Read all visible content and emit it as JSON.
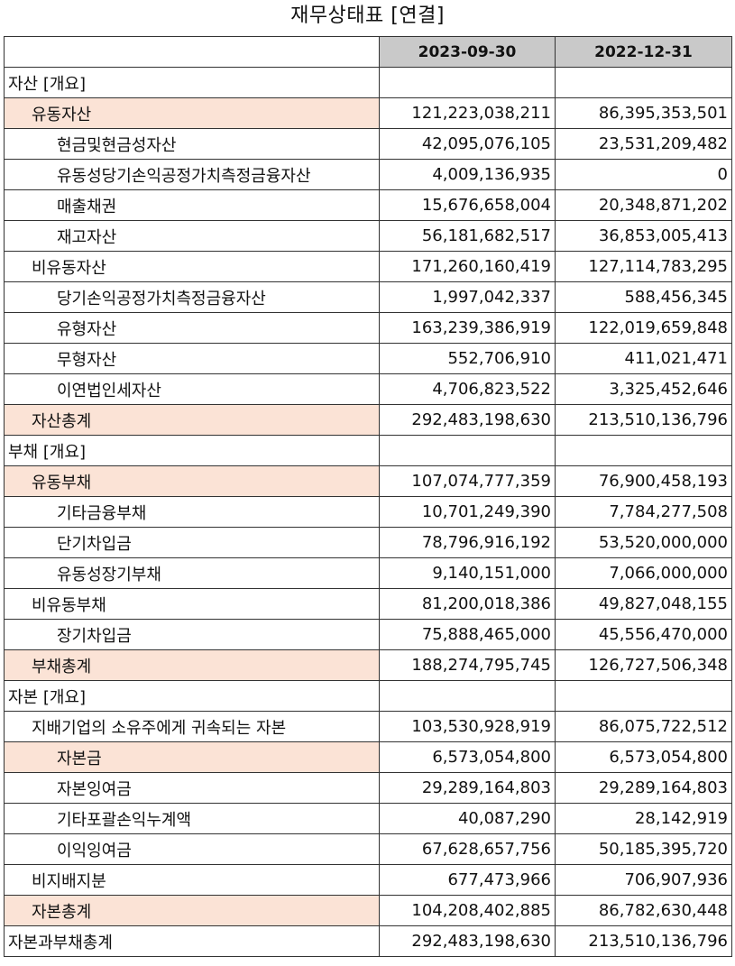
{
  "title": "재무상태표 [연결]",
  "columns": [
    "",
    "2023-09-30",
    "2022-12-31"
  ],
  "rows": [
    {
      "label": "자산 [개요]",
      "level": 0,
      "hl": false,
      "v1": "",
      "v2": ""
    },
    {
      "label": "유동자산",
      "level": 1,
      "hl": true,
      "v1": "121,223,038,211",
      "v2": "86,395,353,501"
    },
    {
      "label": "현금및현금성자산",
      "level": 2,
      "hl": false,
      "v1": "42,095,076,105",
      "v2": "23,531,209,482"
    },
    {
      "label": "유동성당기손익공정가치측정금융자산",
      "level": 2,
      "hl": false,
      "v1": "4,009,136,935",
      "v2": "0"
    },
    {
      "label": "매출채권",
      "level": 2,
      "hl": false,
      "v1": "15,676,658,004",
      "v2": "20,348,871,202"
    },
    {
      "label": "재고자산",
      "level": 2,
      "hl": false,
      "v1": "56,181,682,517",
      "v2": "36,853,005,413"
    },
    {
      "label": "비유동자산",
      "level": 1,
      "hl": false,
      "v1": "171,260,160,419",
      "v2": "127,114,783,295"
    },
    {
      "label": "당기손익공정가치측정금융자산",
      "level": 2,
      "hl": false,
      "v1": "1,997,042,337",
      "v2": "588,456,345"
    },
    {
      "label": "유형자산",
      "level": 2,
      "hl": false,
      "v1": "163,239,386,919",
      "v2": "122,019,659,848"
    },
    {
      "label": "무형자산",
      "level": 2,
      "hl": false,
      "v1": "552,706,910",
      "v2": "411,021,471"
    },
    {
      "label": "이연법인세자산",
      "level": 2,
      "hl": false,
      "v1": "4,706,823,522",
      "v2": "3,325,452,646"
    },
    {
      "label": "자산총계",
      "level": 1,
      "hl": true,
      "v1": "292,483,198,630",
      "v2": "213,510,136,796"
    },
    {
      "label": "부채 [개요]",
      "level": 0,
      "hl": false,
      "v1": "",
      "v2": ""
    },
    {
      "label": "유동부채",
      "level": 1,
      "hl": true,
      "v1": "107,074,777,359",
      "v2": "76,900,458,193"
    },
    {
      "label": "기타금융부채",
      "level": 2,
      "hl": false,
      "v1": "10,701,249,390",
      "v2": "7,784,277,508"
    },
    {
      "label": "단기차입금",
      "level": 2,
      "hl": false,
      "v1": "78,796,916,192",
      "v2": "53,520,000,000"
    },
    {
      "label": "유동성장기부채",
      "level": 2,
      "hl": false,
      "v1": "9,140,151,000",
      "v2": "7,066,000,000"
    },
    {
      "label": "비유동부채",
      "level": 1,
      "hl": false,
      "v1": "81,200,018,386",
      "v2": "49,827,048,155"
    },
    {
      "label": "장기차입금",
      "level": 2,
      "hl": false,
      "v1": "75,888,465,000",
      "v2": "45,556,470,000"
    },
    {
      "label": "부채총계",
      "level": 1,
      "hl": true,
      "v1": "188,274,795,745",
      "v2": "126,727,506,348"
    },
    {
      "label": "자본 [개요]",
      "level": 0,
      "hl": false,
      "v1": "",
      "v2": ""
    },
    {
      "label": "지배기업의 소유주에게 귀속되는 자본",
      "level": 1,
      "hl": false,
      "v1": "103,530,928,919",
      "v2": "86,075,722,512"
    },
    {
      "label": "자본금",
      "level": 2,
      "hl": true,
      "v1": "6,573,054,800",
      "v2": "6,573,054,800"
    },
    {
      "label": "자본잉여금",
      "level": 2,
      "hl": false,
      "v1": "29,289,164,803",
      "v2": "29,289,164,803"
    },
    {
      "label": "기타포괄손익누계액",
      "level": 2,
      "hl": false,
      "v1": "40,087,290",
      "v2": "28,142,919"
    },
    {
      "label": "이익잉여금",
      "level": 2,
      "hl": false,
      "v1": "67,628,657,756",
      "v2": "50,185,395,720"
    },
    {
      "label": "비지배지분",
      "level": 1,
      "hl": false,
      "v1": "677,473,966",
      "v2": "706,907,936"
    },
    {
      "label": "자본총계",
      "level": 1,
      "hl": true,
      "v1": "104,208,402,885",
      "v2": "86,782,630,448"
    },
    {
      "label": "자본과부채총계",
      "level": 0,
      "hl": false,
      "v1": "292,483,198,630",
      "v2": "213,510,136,796"
    }
  ]
}
